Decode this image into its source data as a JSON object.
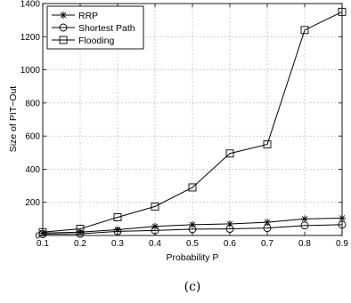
{
  "chart_data": {
    "type": "line",
    "xlabel": "Probability P",
    "ylabel": "Size of PIT−Out",
    "x": [
      0.1,
      0.2,
      0.3,
      0.4,
      0.5,
      0.6,
      0.7,
      0.8,
      0.9
    ],
    "xticks": [
      "0.1",
      "0.2",
      "0.3",
      "0.4",
      "0.5",
      "0.6",
      "0.7",
      "0.8",
      "0.9"
    ],
    "xlim": [
      0.1,
      0.9
    ],
    "ylim": [
      0,
      1400
    ],
    "yticks": [
      0,
      200,
      400,
      600,
      800,
      1000,
      1200,
      1400
    ],
    "grid": true,
    "legend_position": "top-left",
    "series": [
      {
        "name": "RRP",
        "marker": "star",
        "values": [
          15,
          20,
          35,
          55,
          65,
          70,
          80,
          100,
          105
        ]
      },
      {
        "name": "Shortest Path",
        "marker": "circle",
        "values": [
          8,
          10,
          25,
          30,
          38,
          40,
          45,
          60,
          65
        ]
      },
      {
        "name": "Flooding",
        "marker": "square",
        "values": [
          20,
          40,
          110,
          175,
          290,
          495,
          550,
          1240,
          1350
        ]
      }
    ]
  },
  "caption": "(c)"
}
